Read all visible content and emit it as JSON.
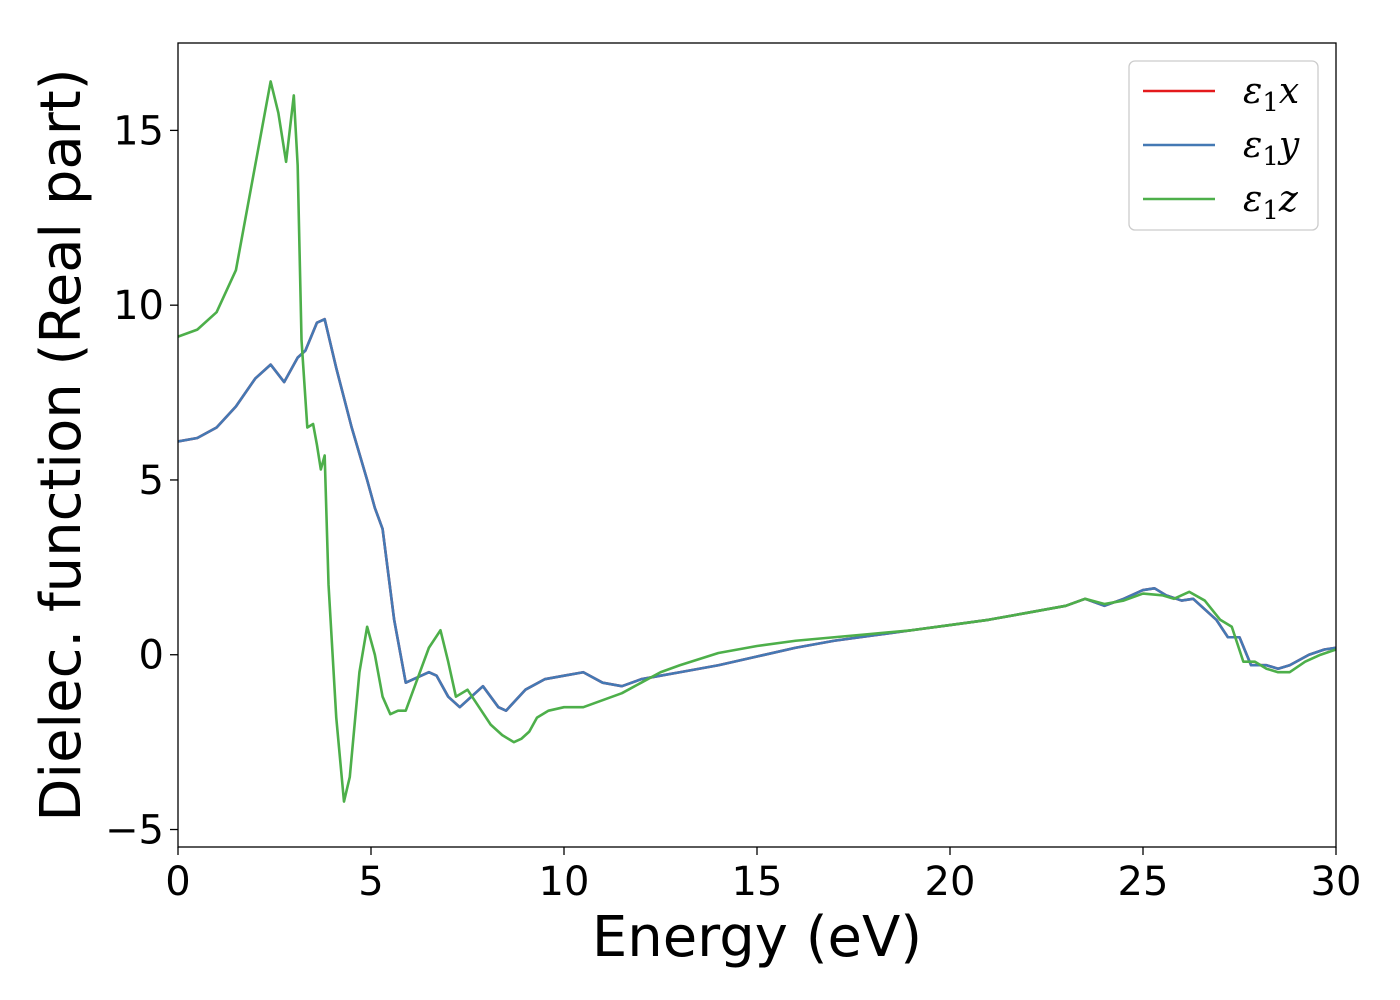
{
  "chart_data": {
    "type": "line",
    "xlabel": "Energy (eV)",
    "ylabel": "Dielec. function (Real part)",
    "xlim": [
      0,
      30
    ],
    "ylim": [
      -5.5,
      17.5
    ],
    "xticks": [
      0,
      5,
      10,
      15,
      20,
      25,
      30
    ],
    "xtick_labels": [
      "0",
      "5",
      "10",
      "15",
      "20",
      "25",
      "30"
    ],
    "yticks": [
      -5,
      0,
      5,
      10,
      15
    ],
    "ytick_labels": [
      "−5",
      "0",
      "5",
      "10",
      "15"
    ],
    "grid": false,
    "legend_position": "top-right",
    "series": [
      {
        "name": "ε1x",
        "legend_base": "ε",
        "legend_sub": "1",
        "legend_var": "x",
        "color": "#e41a1c",
        "x": [
          0,
          0.5,
          1.0,
          1.5,
          2.0,
          2.4,
          2.75,
          3.1,
          3.3,
          3.6,
          3.8,
          4.1,
          4.5,
          4.9,
          5.1,
          5.3,
          5.6,
          5.9,
          6.1,
          6.5,
          6.7,
          7.0,
          7.3,
          7.5,
          7.9,
          8.1,
          8.3,
          8.5,
          9.0,
          9.5,
          10.0,
          10.5,
          11.0,
          11.5,
          12.0,
          12.5,
          13.0,
          14.0,
          15.0,
          16.0,
          17.0,
          18.0,
          19.0,
          20.0,
          21.0,
          22.0,
          22.5,
          23.0,
          23.5,
          24.0,
          24.5,
          25.0,
          25.3,
          25.6,
          26.0,
          26.3,
          26.6,
          26.9,
          27.2,
          27.5,
          27.8,
          28.2,
          28.5,
          28.8,
          29.3,
          29.7,
          30.0
        ],
        "values": [
          6.1,
          6.2,
          6.5,
          7.1,
          7.9,
          8.3,
          7.8,
          8.5,
          8.7,
          9.5,
          9.6,
          8.2,
          6.5,
          5.0,
          4.2,
          3.6,
          1.0,
          -0.8,
          -0.7,
          -0.5,
          -0.6,
          -1.2,
          -1.5,
          -1.3,
          -0.9,
          -1.2,
          -1.5,
          -1.6,
          -1.0,
          -0.7,
          -0.6,
          -0.5,
          -0.8,
          -0.9,
          -0.7,
          -0.6,
          -0.5,
          -0.3,
          -0.05,
          0.2,
          0.4,
          0.55,
          0.7,
          0.85,
          1.0,
          1.2,
          1.3,
          1.4,
          1.6,
          1.4,
          1.6,
          1.85,
          1.9,
          1.7,
          1.55,
          1.6,
          1.3,
          1.0,
          0.5,
          0.5,
          -0.3,
          -0.3,
          -0.4,
          -0.3,
          0.0,
          0.15,
          0.2
        ]
      },
      {
        "name": "ε1y",
        "legend_base": "ε",
        "legend_sub": "1",
        "legend_var": "y",
        "color": "#4479b4",
        "x": [
          0,
          0.5,
          1.0,
          1.5,
          2.0,
          2.4,
          2.75,
          3.1,
          3.3,
          3.6,
          3.8,
          4.1,
          4.5,
          4.9,
          5.1,
          5.3,
          5.6,
          5.9,
          6.1,
          6.5,
          6.7,
          7.0,
          7.3,
          7.5,
          7.9,
          8.1,
          8.3,
          8.5,
          9.0,
          9.5,
          10.0,
          10.5,
          11.0,
          11.5,
          12.0,
          12.5,
          13.0,
          14.0,
          15.0,
          16.0,
          17.0,
          18.0,
          19.0,
          20.0,
          21.0,
          22.0,
          22.5,
          23.0,
          23.5,
          24.0,
          24.5,
          25.0,
          25.3,
          25.6,
          26.0,
          26.3,
          26.6,
          26.9,
          27.2,
          27.5,
          27.8,
          28.2,
          28.5,
          28.8,
          29.3,
          29.7,
          30.0
        ],
        "values": [
          6.1,
          6.2,
          6.5,
          7.1,
          7.9,
          8.3,
          7.8,
          8.5,
          8.7,
          9.5,
          9.6,
          8.2,
          6.5,
          5.0,
          4.2,
          3.6,
          1.0,
          -0.8,
          -0.7,
          -0.5,
          -0.6,
          -1.2,
          -1.5,
          -1.3,
          -0.9,
          -1.2,
          -1.5,
          -1.6,
          -1.0,
          -0.7,
          -0.6,
          -0.5,
          -0.8,
          -0.9,
          -0.7,
          -0.6,
          -0.5,
          -0.3,
          -0.05,
          0.2,
          0.4,
          0.55,
          0.7,
          0.85,
          1.0,
          1.2,
          1.3,
          1.4,
          1.6,
          1.4,
          1.6,
          1.85,
          1.9,
          1.7,
          1.55,
          1.6,
          1.3,
          1.0,
          0.5,
          0.5,
          -0.3,
          -0.3,
          -0.4,
          -0.3,
          0.0,
          0.15,
          0.2
        ]
      },
      {
        "name": "ε1z",
        "legend_base": "ε",
        "legend_sub": "1",
        "legend_var": "z",
        "color": "#4daf4a",
        "x": [
          0,
          0.5,
          1.0,
          1.5,
          2.0,
          2.4,
          2.6,
          2.8,
          3.0,
          3.1,
          3.2,
          3.35,
          3.5,
          3.6,
          3.7,
          3.8,
          3.9,
          4.1,
          4.3,
          4.45,
          4.7,
          4.9,
          5.1,
          5.3,
          5.5,
          5.7,
          5.9,
          6.2,
          6.5,
          6.8,
          7.0,
          7.2,
          7.5,
          7.8,
          8.1,
          8.4,
          8.7,
          8.9,
          9.1,
          9.3,
          9.6,
          10.0,
          10.5,
          11.0,
          11.5,
          12.0,
          12.5,
          13.0,
          14.0,
          15.0,
          16.0,
          17.0,
          18.0,
          19.0,
          20.0,
          21.0,
          22.0,
          22.5,
          23.0,
          23.5,
          24.0,
          24.5,
          25.0,
          25.5,
          25.8,
          26.2,
          26.6,
          27.0,
          27.3,
          27.6,
          27.9,
          28.2,
          28.5,
          28.8,
          29.2,
          29.6,
          30.0
        ],
        "values": [
          9.1,
          9.3,
          9.8,
          11.0,
          14.0,
          16.4,
          15.5,
          14.1,
          16.0,
          14.0,
          9.0,
          6.5,
          6.6,
          6.0,
          5.3,
          5.7,
          2.0,
          -1.8,
          -4.2,
          -3.5,
          -0.5,
          0.8,
          0.0,
          -1.2,
          -1.7,
          -1.6,
          -1.6,
          -0.7,
          0.2,
          0.7,
          -0.2,
          -1.2,
          -1.0,
          -1.5,
          -2.0,
          -2.3,
          -2.5,
          -2.4,
          -2.2,
          -1.8,
          -1.6,
          -1.5,
          -1.5,
          -1.3,
          -1.1,
          -0.8,
          -0.5,
          -0.3,
          0.05,
          0.25,
          0.4,
          0.5,
          0.6,
          0.7,
          0.85,
          1.0,
          1.2,
          1.3,
          1.4,
          1.6,
          1.45,
          1.55,
          1.75,
          1.7,
          1.6,
          1.8,
          1.55,
          1.0,
          0.8,
          -0.2,
          -0.2,
          -0.4,
          -0.5,
          -0.5,
          -0.2,
          0.0,
          0.15
        ]
      }
    ]
  }
}
